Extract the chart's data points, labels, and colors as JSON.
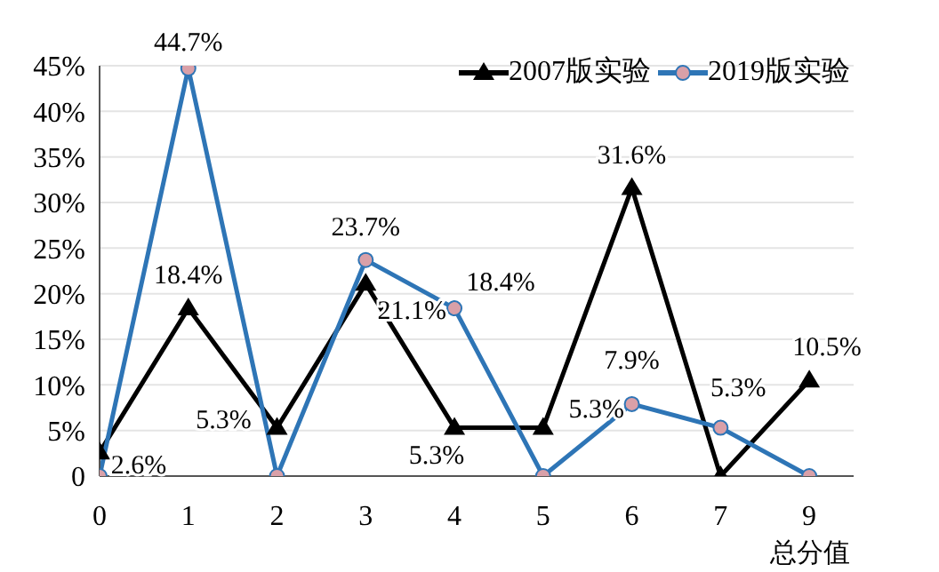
{
  "chart_data": {
    "type": "line",
    "xlabel": "总分值",
    "categories": [
      "0",
      "1",
      "2",
      "3",
      "4",
      "5",
      "6",
      "7",
      "9"
    ],
    "series": [
      {
        "name": "2007版实验",
        "color": "#000000",
        "marker": "triangle",
        "values": [
          2.6,
          18.4,
          5.3,
          21.1,
          5.3,
          5.3,
          31.6,
          0,
          10.5
        ],
        "value_labels": [
          "2.6%",
          "18.4%",
          "5.3%",
          "21.1%",
          "5.3%",
          "5.3%",
          "31.6%",
          null,
          "10.5%"
        ]
      },
      {
        "name": "2019版实验",
        "color": "#2e75b6",
        "marker": "circle",
        "values": [
          0,
          44.7,
          0,
          23.7,
          18.4,
          0,
          7.9,
          5.3,
          0
        ],
        "value_labels": [
          null,
          "44.7%",
          null,
          "23.7%",
          "18.4%",
          null,
          "7.9%",
          "5.3%",
          null
        ]
      }
    ],
    "ylim": [
      0,
      45
    ],
    "yticks": [
      {
        "value": 0,
        "label": "0"
      },
      {
        "value": 5,
        "label": "5%"
      },
      {
        "value": 10,
        "label": "10%"
      },
      {
        "value": 15,
        "label": "15%"
      },
      {
        "value": 20,
        "label": "20%"
      },
      {
        "value": 25,
        "label": "25%"
      },
      {
        "value": 30,
        "label": "30%"
      },
      {
        "value": 35,
        "label": "35%"
      },
      {
        "value": 40,
        "label": "40%"
      },
      {
        "value": 45,
        "label": "45%"
      }
    ],
    "grid": "y",
    "legend": "top right"
  }
}
